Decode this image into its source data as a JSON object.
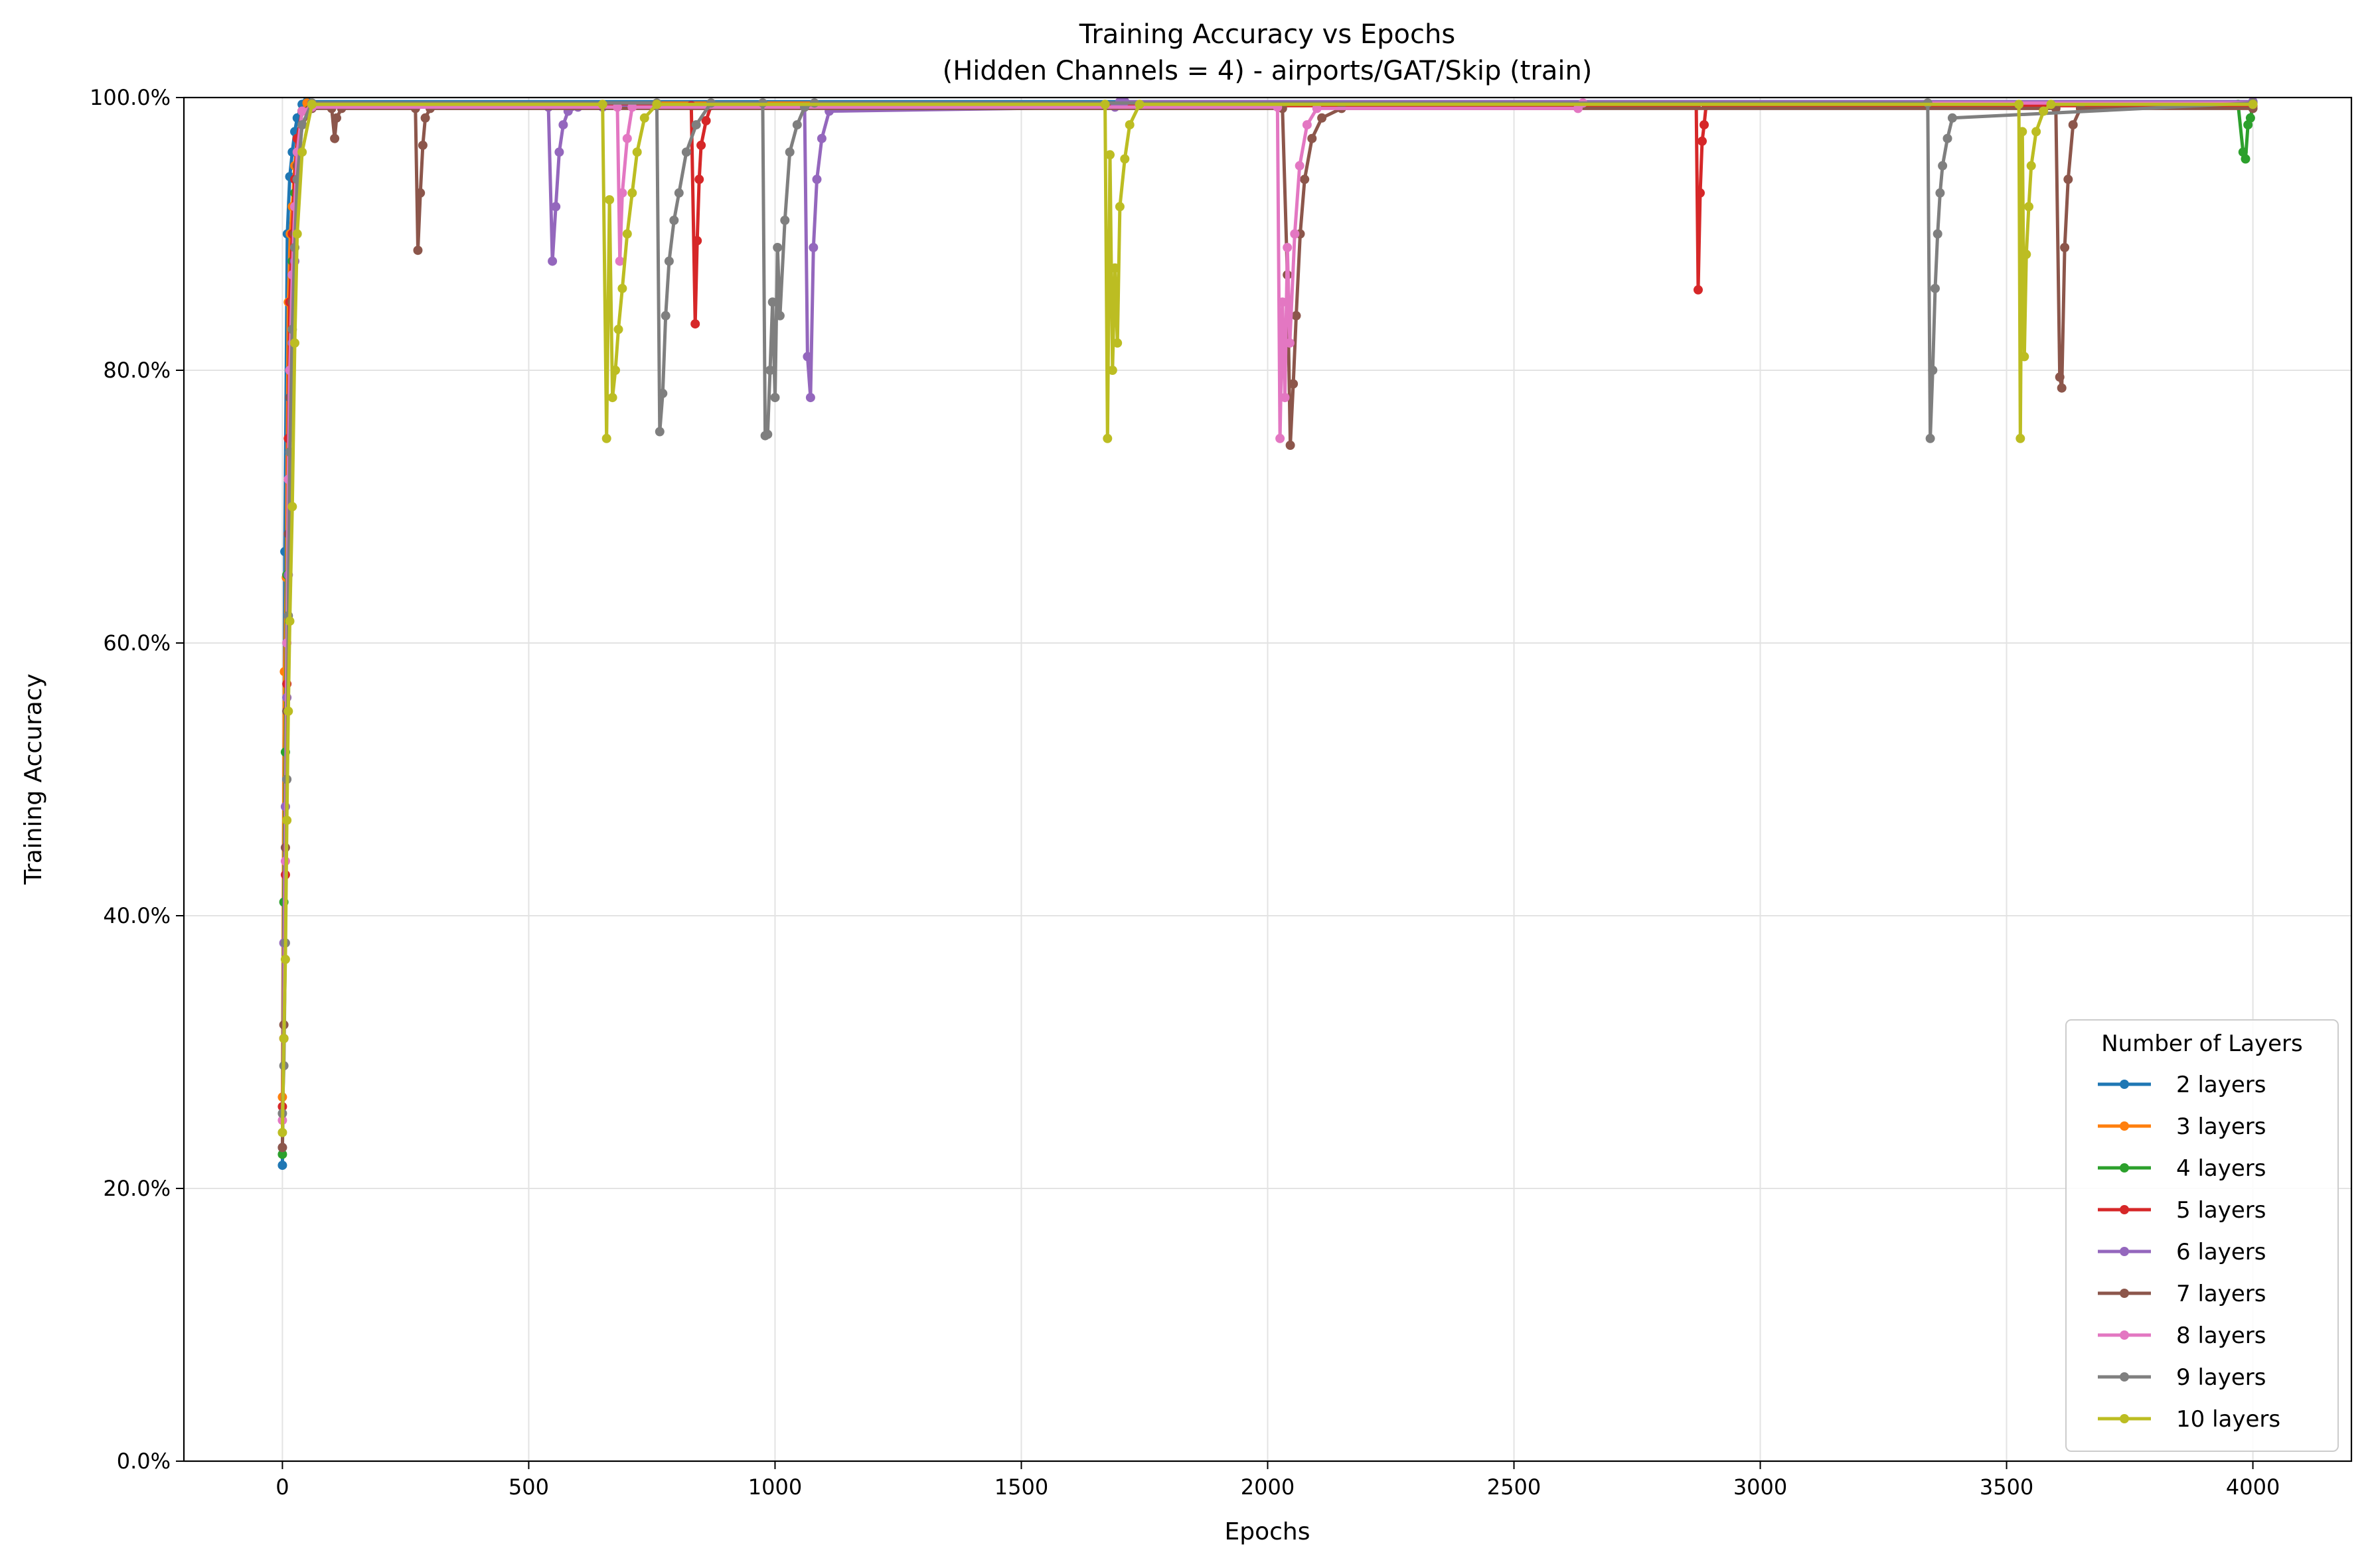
{
  "chart_data": {
    "type": "line",
    "title": "Training Accuracy vs Epochs",
    "subtitle": "(Hidden Channels = 4) - airports/GAT/Skip (train)",
    "xlabel": "Epochs",
    "ylabel": "Training Accuracy",
    "xlim": [
      -200,
      4200
    ],
    "ylim": [
      0,
      100
    ],
    "xticks": [
      0,
      500,
      1000,
      1500,
      2000,
      2500,
      3000,
      3500,
      4000
    ],
    "xtick_labels": [
      "0",
      "500",
      "1000",
      "1500",
      "2000",
      "2500",
      "3000",
      "3500",
      "4000"
    ],
    "yticks": [
      0,
      20,
      40,
      60,
      80,
      100
    ],
    "ytick_labels": [
      "0.0%",
      "20.0%",
      "40.0%",
      "60.0%",
      "80.0%",
      "100.0%"
    ],
    "grid": true,
    "legend": {
      "title": "Number of Layers",
      "placement": "lower-right"
    },
    "series": [
      {
        "name": "2 layers",
        "color": "#1f77b4",
        "x": [
          0,
          5,
          10,
          15,
          20,
          25,
          30,
          40,
          50,
          4000
        ],
        "y": [
          21.7,
          66.7,
          90,
          94.2,
          96,
          97.5,
          98.5,
          99.5,
          99.7,
          99.7
        ]
      },
      {
        "name": "3 layers",
        "color": "#ff7f0e",
        "x": [
          0,
          4,
          8,
          12,
          16,
          20,
          25,
          30,
          40,
          50,
          4000
        ],
        "y": [
          26.7,
          57.9,
          64.8,
          85,
          90,
          92,
          95,
          97,
          99,
          99.6,
          99.6
        ]
      },
      {
        "name": "4 layers",
        "color": "#2ca02c",
        "x": [
          0,
          3,
          6,
          9,
          12,
          15,
          20,
          25,
          30,
          40,
          60,
          3970,
          3980,
          3985,
          3990,
          3995,
          4000
        ],
        "y": [
          22.5,
          41,
          52,
          65,
          72,
          80,
          88,
          93,
          96,
          99,
          99.5,
          99.5,
          96,
          95.5,
          98,
          98.5,
          99.4
        ]
      },
      {
        "name": "5 layers",
        "color": "#d62728",
        "x": [
          0,
          3,
          6,
          9,
          12,
          15,
          20,
          25,
          30,
          40,
          60,
          830,
          838,
          842,
          846,
          850,
          860,
          870,
          2870,
          2874,
          2878,
          2882,
          2886,
          2890,
          4000
        ],
        "y": [
          26,
          31,
          43,
          57,
          75,
          85,
          90,
          94,
          97,
          99,
          99.4,
          99.4,
          83.4,
          89.5,
          94,
          96.5,
          98.3,
          99.4,
          99.4,
          85.9,
          93,
          96.8,
          98,
          99.4,
          99.4
        ]
      },
      {
        "name": "6 layers",
        "color": "#9467bd",
        "x": [
          0,
          3,
          6,
          9,
          12,
          15,
          20,
          25,
          30,
          40,
          60,
          540,
          548,
          555,
          562,
          570,
          580,
          600,
          650,
          1060,
          1066,
          1072,
          1078,
          1085,
          1095,
          1110,
          1690,
          1700,
          1710,
          4000
        ],
        "y": [
          23,
          38,
          48,
          56,
          65,
          74,
          82,
          88,
          94,
          98,
          99.3,
          99.3,
          88,
          92,
          96,
          98,
          99,
          99.3,
          99.3,
          99.3,
          81,
          78,
          89,
          94,
          97,
          99,
          99.3,
          99.7,
          99.7,
          99.7
        ]
      },
      {
        "name": "7 layers",
        "color": "#8c564b",
        "x": [
          0,
          3,
          6,
          9,
          12,
          15,
          20,
          25,
          30,
          40,
          60,
          100,
          106,
          110,
          120,
          270,
          275,
          280,
          285,
          290,
          300,
          2030,
          2040,
          2046,
          2052,
          2058,
          2066,
          2075,
          2090,
          2110,
          2150,
          3600,
          3608,
          3612,
          3618,
          3625,
          3635,
          3650,
          4000
        ],
        "y": [
          23,
          32,
          45,
          55,
          68,
          78,
          85,
          90,
          95,
          98,
          99.2,
          99.2,
          97,
          98.5,
          99.2,
          99.2,
          88.8,
          93,
          96.5,
          98.5,
          99.2,
          99.2,
          87,
          74.5,
          79,
          84,
          90,
          94,
          97,
          98.5,
          99.2,
          99.2,
          79.5,
          78.7,
          89,
          94,
          98,
          99.2,
          99.2
        ]
      },
      {
        "name": "8 layers",
        "color": "#e377c2",
        "x": [
          0,
          3,
          6,
          9,
          12,
          15,
          20,
          25,
          30,
          40,
          60,
          680,
          685,
          690,
          700,
          710,
          2020,
          2025,
          2030,
          2035,
          2040,
          2045,
          2055,
          2065,
          2080,
          2100,
          2630,
          2640,
          4000
        ],
        "y": [
          25,
          31,
          44,
          60,
          72,
          80,
          87,
          92,
          96,
          99,
          99.3,
          99.3,
          88,
          93,
          97,
          99.3,
          99.3,
          75,
          85,
          78,
          89,
          82,
          90,
          95,
          98,
          99.2,
          99.2,
          99.6,
          99.6
        ]
      },
      {
        "name": "9 layers",
        "color": "#7f7f7f",
        "x": [
          0,
          3,
          6,
          9,
          12,
          15,
          20,
          25,
          30,
          40,
          60,
          760,
          766,
          772,
          778,
          785,
          795,
          805,
          820,
          840,
          870,
          975,
          980,
          985,
          990,
          995,
          1000,
          1005,
          1010,
          1020,
          1030,
          1045,
          1060,
          1080,
          3340,
          3345,
          3350,
          3355,
          3360,
          3365,
          3370,
          3380,
          3390,
          4000
        ],
        "y": [
          25.5,
          29,
          38,
          50,
          62,
          74,
          83,
          89,
          94,
          98,
          99.6,
          99.6,
          75.5,
          78.3,
          84,
          88,
          91,
          93,
          96,
          98,
          99.6,
          99.6,
          75.2,
          75.3,
          80,
          85,
          78,
          89,
          84,
          91,
          96,
          98,
          99.3,
          99.6,
          99.6,
          75,
          80,
          86,
          90,
          93,
          95,
          97,
          98.5,
          99.6
        ]
      },
      {
        "name": "10 layers",
        "color": "#bcbd22",
        "x": [
          0,
          3,
          6,
          9,
          12,
          15,
          20,
          25,
          30,
          40,
          60,
          650,
          658,
          664,
          670,
          676,
          682,
          690,
          700,
          710,
          720,
          735,
          760,
          1670,
          1675,
          1680,
          1685,
          1690,
          1695,
          1700,
          1710,
          1720,
          1740,
          3525,
          3528,
          3532,
          3536,
          3540,
          3545,
          3550,
          3560,
          3575,
          3590,
          4000
        ],
        "y": [
          24.1,
          31,
          36.8,
          47,
          55,
          61.6,
          70,
          82,
          90,
          96,
          99.5,
          99.5,
          75,
          92.5,
          78,
          80,
          83,
          86,
          90,
          93,
          96,
          98.5,
          99.5,
          99.5,
          75,
          95.8,
          80,
          87.5,
          82,
          92,
          95.5,
          98,
          99.5,
          99.5,
          75,
          97.5,
          81,
          88.5,
          92,
          95,
          97.5,
          99,
          99.5,
          99.5
        ]
      }
    ]
  }
}
